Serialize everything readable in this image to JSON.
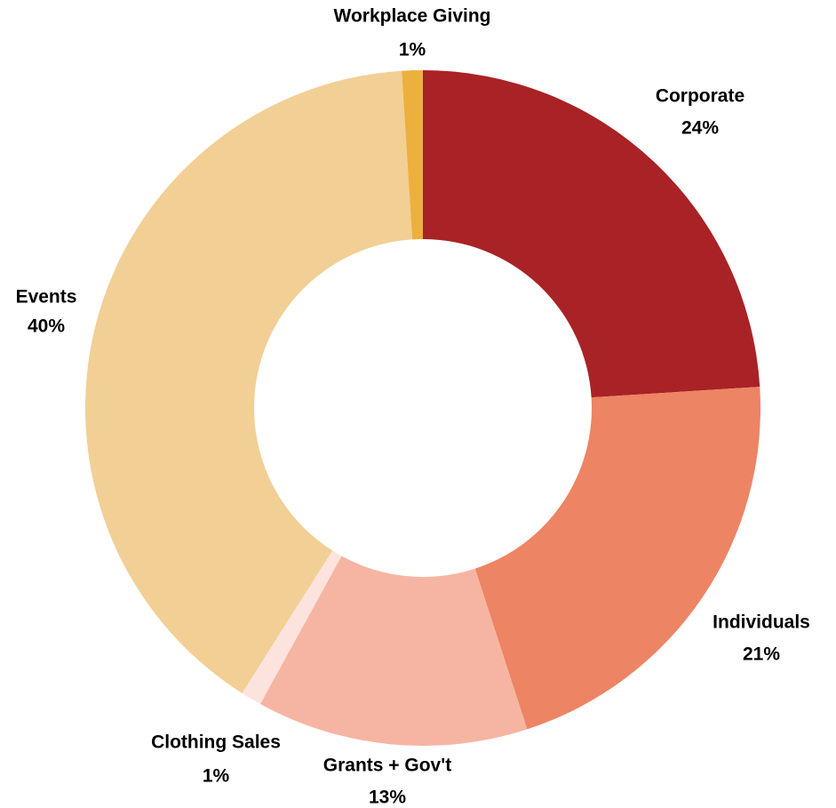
{
  "chart_data": {
    "type": "pie",
    "donut": true,
    "title": "",
    "labels": [
      "Corporate",
      "Individuals",
      "Grants + Gov't",
      "Clothing Sales",
      "Events",
      "Workplace Giving"
    ],
    "values": [
      24,
      21,
      13,
      1,
      40,
      1
    ],
    "value_labels": [
      "24%",
      "21%",
      "13%",
      "1%",
      "40%",
      "1%"
    ],
    "colors": [
      "#a92226",
      "#ed8463",
      "#f6b5a2",
      "#fce3dd",
      "#f2cf95",
      "#ecb03f"
    ],
    "start_angle_deg": 0,
    "direction": "clockwise",
    "legend": "none"
  }
}
